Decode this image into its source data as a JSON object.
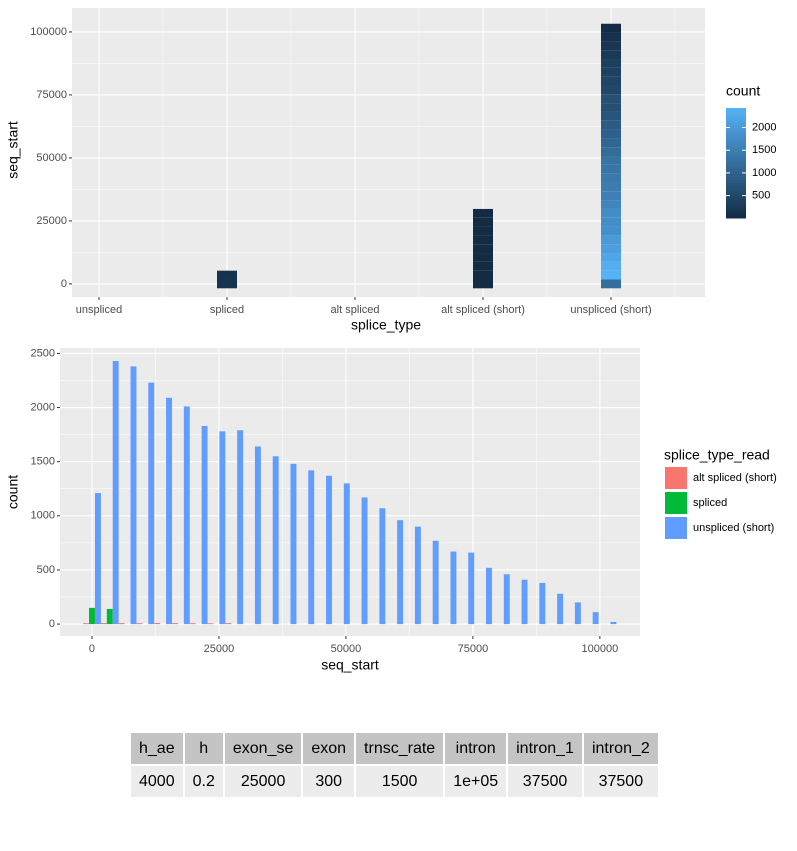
{
  "chart_data": [
    {
      "type": "tile",
      "x_label": "splice_type",
      "y_label": "seq_start",
      "categories": [
        "unspliced",
        "spliced",
        "alt spliced",
        "alt spliced (short)",
        "unspliced (short)"
      ],
      "bins": [
        -1750,
        1750,
        5250,
        8750,
        12250,
        15750,
        19250,
        22750,
        26250,
        29750,
        33250,
        36750,
        40250,
        43750,
        47250,
        50750,
        54250,
        57750,
        61250,
        64750,
        68250,
        71750,
        75250,
        78750,
        82250,
        85750,
        89250,
        92750,
        96250,
        99750,
        103250
      ],
      "counts": [
        [
          null,
          null,
          null,
          null,
          null,
          null,
          null,
          null,
          null,
          null,
          null,
          null,
          null,
          null,
          null,
          null,
          null,
          null,
          null,
          null,
          null,
          null,
          null,
          null,
          null,
          null,
          null,
          null,
          null,
          null
        ],
        [
          150,
          140,
          null,
          null,
          null,
          null,
          null,
          null,
          null,
          null,
          null,
          null,
          null,
          null,
          null,
          null,
          null,
          null,
          null,
          null,
          null,
          null,
          null,
          null,
          null,
          null,
          null,
          null,
          null,
          null
        ],
        [
          null,
          null,
          null,
          null,
          null,
          null,
          null,
          null,
          null,
          null,
          null,
          null,
          null,
          null,
          null,
          null,
          null,
          null,
          null,
          null,
          null,
          null,
          null,
          null,
          null,
          null,
          null,
          null,
          null,
          null
        ],
        [
          8,
          10,
          9,
          8,
          10,
          9,
          8,
          7,
          9,
          null,
          null,
          null,
          null,
          null,
          null,
          null,
          null,
          null,
          null,
          null,
          null,
          null,
          null,
          null,
          null,
          null,
          null,
          null,
          null,
          null
        ],
        [
          1210,
          2430,
          2380,
          2230,
          2090,
          2010,
          1830,
          1780,
          1790,
          1640,
          1550,
          1480,
          1420,
          1370,
          1300,
          1170,
          1070,
          960,
          900,
          770,
          670,
          660,
          520,
          460,
          410,
          380,
          280,
          200,
          110,
          20
        ]
      ],
      "ylim": [
        -5200,
        109500
      ],
      "yticks": [
        0,
        25000,
        50000,
        75000,
        100000
      ],
      "grid": true,
      "legend_title": "count",
      "legend_ticks": [
        500,
        1000,
        1500,
        2000
      ],
      "low_color": "#132B43",
      "high_color": "#56B1F7"
    },
    {
      "type": "histogram",
      "x_label": "seq_start",
      "y_label": "count",
      "legend_title": "splice_type_read",
      "bins": [
        -1750,
        1750,
        5250,
        8750,
        12250,
        15750,
        19250,
        22750,
        26250,
        29750,
        33250,
        36750,
        40250,
        43750,
        47250,
        50750,
        54250,
        57750,
        61250,
        64750,
        68250,
        71750,
        75250,
        78750,
        82250,
        85750,
        89250,
        92750,
        96250,
        99750,
        103250
      ],
      "series": [
        {
          "name": "alt spliced (short)",
          "color": "#F8766D",
          "values": [
            8,
            10,
            9,
            8,
            10,
            9,
            8,
            7,
            9,
            0,
            0,
            0,
            0,
            0,
            0,
            0,
            0,
            0,
            0,
            0,
            0,
            0,
            0,
            0,
            0,
            0,
            0,
            0,
            0,
            0
          ]
        },
        {
          "name": "spliced",
          "color": "#00BA38",
          "values": [
            150,
            140,
            0,
            0,
            0,
            0,
            0,
            0,
            0,
            0,
            0,
            0,
            0,
            0,
            0,
            0,
            0,
            0,
            0,
            0,
            0,
            0,
            0,
            0,
            0,
            0,
            0,
            0,
            0,
            0
          ]
        },
        {
          "name": "unspliced (short)",
          "color": "#619CFF",
          "values": [
            1210,
            2430,
            2380,
            2230,
            2090,
            2010,
            1830,
            1780,
            1790,
            1640,
            1550,
            1480,
            1420,
            1370,
            1300,
            1170,
            1070,
            960,
            900,
            770,
            670,
            660,
            520,
            460,
            410,
            380,
            280,
            200,
            110,
            20
          ]
        }
      ],
      "xlim": [
        -6300,
        107900
      ],
      "ylim": [
        -110,
        2550
      ],
      "xticks": [
        0,
        25000,
        50000,
        75000,
        100000
      ],
      "yticks": [
        0,
        500,
        1000,
        1500,
        2000,
        2500
      ],
      "grid": true
    }
  ],
  "table": {
    "header": [
      "h_ae",
      "h",
      "exon_se",
      "exon",
      "trnsc_rate",
      "intron",
      "intron_1",
      "intron_2"
    ],
    "rows": [
      [
        "4000",
        "0.2",
        "25000",
        "300",
        "1500",
        "1e+05",
        "37500",
        "37500"
      ]
    ]
  }
}
